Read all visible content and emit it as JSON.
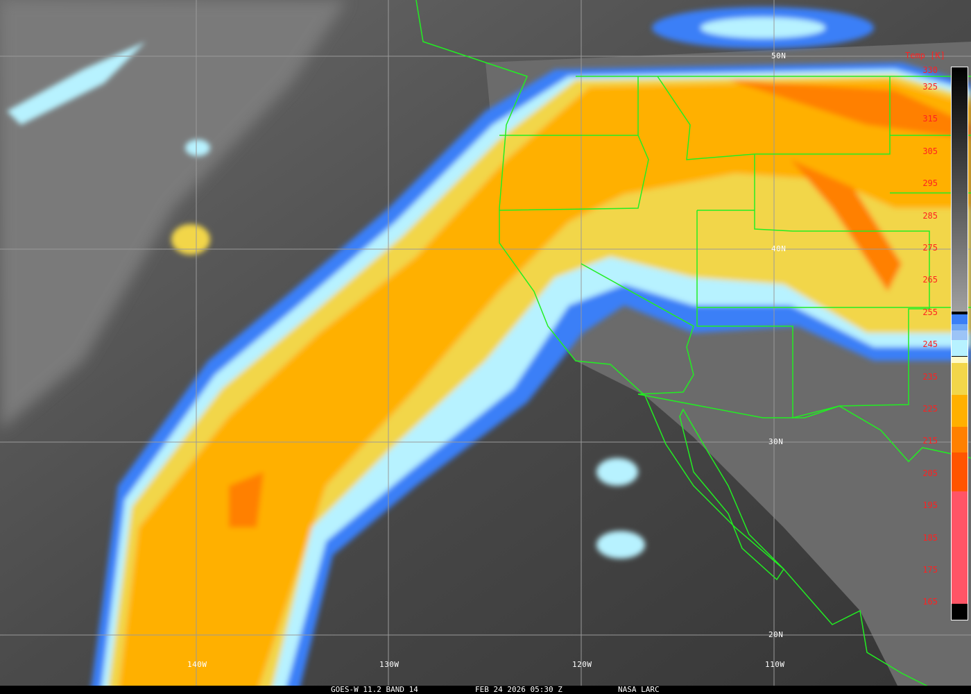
{
  "caption": {
    "satellite": "GOES-W 11.2 BAND 14",
    "datetime": "FEB 24 2026 05:30 Z",
    "source": "NASA LARC"
  },
  "grid": {
    "longitudes": [
      "140W",
      "130W",
      "120W",
      "110W"
    ],
    "latitudes": [
      "50N",
      "40N",
      "30N",
      "20N"
    ]
  },
  "colorbar": {
    "title": "Temp [K]",
    "labels": [
      "330",
      "325",
      "315",
      "305",
      "295",
      "285",
      "275",
      "265",
      "255",
      "245",
      "235",
      "225",
      "215",
      "205",
      "195",
      "185",
      "175",
      "165"
    ],
    "stops": [
      {
        "k": 330,
        "color": "#000000"
      },
      {
        "k": 256,
        "color": "#a0a0a0"
      },
      {
        "k": 255,
        "color": "#3a7ff7"
      },
      {
        "k": 252,
        "color": "#6fa8f5"
      },
      {
        "k": 250,
        "color": "#9cc4f7"
      },
      {
        "k": 247,
        "color": "#b7f2ff"
      },
      {
        "k": 242,
        "color": "#fffbc8"
      },
      {
        "k": 240,
        "color": "#f2d64a"
      },
      {
        "k": 230,
        "color": "#ffb000"
      },
      {
        "k": 220,
        "color": "#ff8000"
      },
      {
        "k": 212,
        "color": "#ff5500"
      },
      {
        "k": 200,
        "color": "#ff5566"
      },
      {
        "k": 165,
        "color": "#000000"
      }
    ]
  },
  "colors": {
    "borders": "#22ee22",
    "grid": "#9a9a9a",
    "label_text": "#ffffff",
    "colorbar_text": "#ff2020"
  }
}
